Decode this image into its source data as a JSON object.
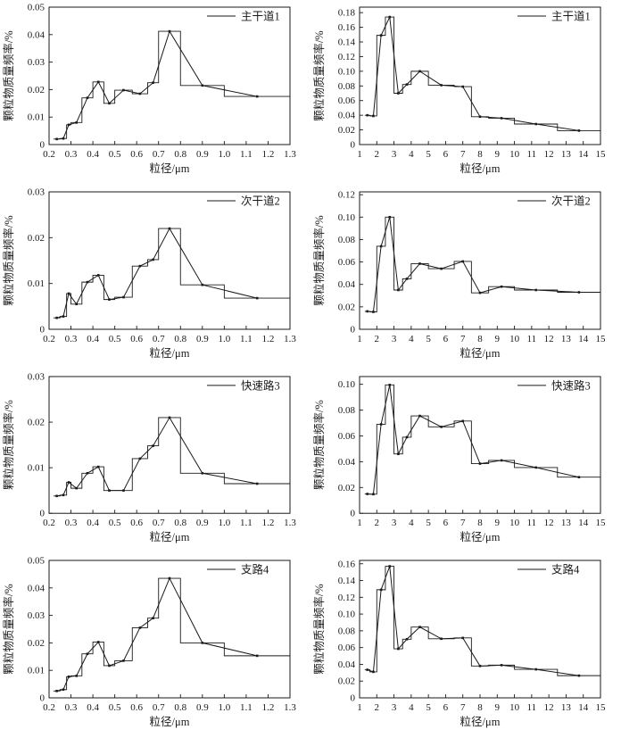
{
  "page": {
    "background": "#ffffff",
    "line_color": "#1a1a1a",
    "description": "Eight-panel particle mass frequency distributions by road type (fine 0.2-1.3 um and coarse 1-15 um ranges)"
  },
  "axis_labels": {
    "x": "粒径/μm",
    "y": "颗粒物质量频率/%"
  },
  "chart_data": [
    {
      "panel": "row1-left",
      "type": "bar",
      "style": "step-histogram-with-line-markers",
      "legend": "主干道1",
      "xlabel": "粒径/μm",
      "ylabel": "颗粒物质量频率/%",
      "xlim": [
        0.2,
        1.3
      ],
      "ylim": [
        0,
        0.05
      ],
      "x_ticks": [
        "0.2",
        "0.3",
        "0.4",
        "0.5",
        "0.6",
        "0.7",
        "0.8",
        "0.9",
        "1.0",
        "1.1",
        "1.2",
        "1.3"
      ],
      "y_ticks": [
        "0",
        "0.01",
        "0.02",
        "0.03",
        "0.04",
        "0.05"
      ],
      "bin_edges": [
        0.22,
        0.25,
        0.28,
        0.3,
        0.35,
        0.4,
        0.45,
        0.5,
        0.58,
        0.65,
        0.7,
        0.8,
        1.0,
        1.3
      ],
      "x": [
        0.235,
        0.265,
        0.29,
        0.325,
        0.375,
        0.425,
        0.475,
        0.54,
        0.615,
        0.675,
        0.75,
        0.9,
        1.15
      ],
      "values": [
        0.002,
        0.0022,
        0.0072,
        0.008,
        0.017,
        0.0228,
        0.015,
        0.0198,
        0.0185,
        0.0225,
        0.0412,
        0.0215,
        0.0175
      ]
    },
    {
      "panel": "row1-right",
      "type": "bar",
      "style": "step-histogram-with-line-markers",
      "legend": "主干道1",
      "xlabel": "粒径/μm",
      "ylabel": "颗粒物质量频率/%",
      "xlim": [
        1,
        15
      ],
      "ylim": [
        0,
        0.1875
      ],
      "x_ticks": [
        "1",
        "2",
        "3",
        "4",
        "5",
        "6",
        "7",
        "8",
        "9",
        "10",
        "11",
        "12",
        "13",
        "14",
        "15"
      ],
      "y_ticks": [
        "0",
        "0.02",
        "0.04",
        "0.06",
        "0.08",
        "0.10",
        "0.12",
        "0.14",
        "0.16",
        "0.18"
      ],
      "bin_edges": [
        1.3,
        1.6,
        2.0,
        2.5,
        3.0,
        3.5,
        4.0,
        5.0,
        6.5,
        7.5,
        8.5,
        10.0,
        12.5,
        15.0
      ],
      "x": [
        1.45,
        1.8,
        2.25,
        2.75,
        3.25,
        3.75,
        4.5,
        5.75,
        7.0,
        8.0,
        9.25,
        11.25,
        13.75
      ],
      "values": [
        0.04,
        0.039,
        0.149,
        0.174,
        0.07,
        0.082,
        0.1,
        0.081,
        0.079,
        0.038,
        0.036,
        0.028,
        0.019
      ]
    },
    {
      "panel": "row2-left",
      "type": "bar",
      "style": "step-histogram-with-line-markers",
      "legend": "次干道2",
      "xlabel": "粒径/μm",
      "ylabel": "颗粒物质量频率/%",
      "xlim": [
        0.2,
        1.3
      ],
      "ylim": [
        0,
        0.03
      ],
      "x_ticks": [
        "0.2",
        "0.3",
        "0.4",
        "0.5",
        "0.6",
        "0.7",
        "0.8",
        "0.9",
        "1.0",
        "1.1",
        "1.2",
        "1.3"
      ],
      "y_ticks": [
        "0",
        "0.01",
        "0.02",
        "0.03"
      ],
      "bin_edges": [
        0.22,
        0.25,
        0.28,
        0.3,
        0.35,
        0.4,
        0.45,
        0.5,
        0.58,
        0.65,
        0.7,
        0.8,
        1.0,
        1.3
      ],
      "x": [
        0.235,
        0.265,
        0.29,
        0.325,
        0.375,
        0.425,
        0.475,
        0.54,
        0.615,
        0.675,
        0.75,
        0.9,
        1.15
      ],
      "values": [
        0.0025,
        0.0028,
        0.0078,
        0.0055,
        0.0103,
        0.0118,
        0.0065,
        0.007,
        0.0138,
        0.0152,
        0.022,
        0.0097,
        0.0068
      ]
    },
    {
      "panel": "row2-right",
      "type": "bar",
      "style": "step-histogram-with-line-markers",
      "legend": "次干道2",
      "xlabel": "粒径/μm",
      "ylabel": "颗粒物质量频率/%",
      "xlim": [
        1,
        15
      ],
      "ylim": [
        0,
        0.1225
      ],
      "x_ticks": [
        "1",
        "2",
        "3",
        "4",
        "5",
        "6",
        "7",
        "8",
        "9",
        "10",
        "11",
        "12",
        "13",
        "14",
        "15"
      ],
      "y_ticks": [
        "0",
        "0.02",
        "0.04",
        "0.06",
        "0.08",
        "0.10",
        "0.12"
      ],
      "bin_edges": [
        1.3,
        1.6,
        2.0,
        2.5,
        3.0,
        3.5,
        4.0,
        5.0,
        6.5,
        7.5,
        8.5,
        10.0,
        12.5,
        15.0
      ],
      "x": [
        1.45,
        1.8,
        2.25,
        2.75,
        3.25,
        3.75,
        4.5,
        5.75,
        7.0,
        8.0,
        9.25,
        11.25,
        13.75
      ],
      "values": [
        0.016,
        0.0155,
        0.074,
        0.1,
        0.035,
        0.045,
        0.0585,
        0.054,
        0.0605,
        0.0325,
        0.038,
        0.035,
        0.033
      ]
    },
    {
      "panel": "row3-left",
      "type": "bar",
      "style": "step-histogram-with-line-markers",
      "legend": "快速路3",
      "xlabel": "粒径/μm",
      "ylabel": "颗粒物质量频率/%",
      "xlim": [
        0.2,
        1.3
      ],
      "ylim": [
        0,
        0.03
      ],
      "x_ticks": [
        "0.2",
        "0.3",
        "0.4",
        "0.5",
        "0.6",
        "0.7",
        "0.8",
        "0.9",
        "1.0",
        "1.1",
        "1.2",
        "1.3"
      ],
      "y_ticks": [
        "0",
        "0.01",
        "0.02",
        "0.03"
      ],
      "bin_edges": [
        0.22,
        0.25,
        0.28,
        0.3,
        0.35,
        0.4,
        0.45,
        0.5,
        0.58,
        0.65,
        0.7,
        0.8,
        1.0,
        1.3
      ],
      "x": [
        0.235,
        0.265,
        0.29,
        0.325,
        0.375,
        0.425,
        0.475,
        0.54,
        0.615,
        0.675,
        0.75,
        0.9,
        1.15
      ],
      "values": [
        0.0038,
        0.004,
        0.0068,
        0.0055,
        0.0088,
        0.0102,
        0.005,
        0.005,
        0.012,
        0.0148,
        0.021,
        0.0088,
        0.0065
      ]
    },
    {
      "panel": "row3-right",
      "type": "bar",
      "style": "step-histogram-with-line-markers",
      "legend": "快速路3",
      "xlabel": "粒径/μm",
      "ylabel": "颗粒物质量频率/%",
      "xlim": [
        1,
        15
      ],
      "ylim": [
        0,
        0.106
      ],
      "x_ticks": [
        "1",
        "2",
        "3",
        "4",
        "5",
        "6",
        "7",
        "8",
        "9",
        "10",
        "11",
        "12",
        "13",
        "14",
        "15"
      ],
      "y_ticks": [
        "0",
        "0.02",
        "0.04",
        "0.06",
        "0.08",
        "0.10"
      ],
      "bin_edges": [
        1.3,
        1.6,
        2.0,
        2.5,
        3.0,
        3.5,
        4.0,
        5.0,
        6.5,
        7.5,
        8.5,
        10.0,
        12.5,
        15.0
      ],
      "x": [
        1.45,
        1.8,
        2.25,
        2.75,
        3.25,
        3.75,
        4.5,
        5.75,
        7.0,
        8.0,
        9.25,
        11.25,
        13.75
      ],
      "values": [
        0.015,
        0.0148,
        0.069,
        0.0995,
        0.046,
        0.059,
        0.0755,
        0.067,
        0.0715,
        0.0385,
        0.041,
        0.0355,
        0.028
      ]
    },
    {
      "panel": "row4-left",
      "type": "bar",
      "style": "step-histogram-with-line-markers",
      "legend": "支路4",
      "xlabel": "粒径/μm",
      "ylabel": "颗粒物质量频率/%",
      "xlim": [
        0.2,
        1.3
      ],
      "ylim": [
        0,
        0.05
      ],
      "x_ticks": [
        "0.2",
        "0.3",
        "0.4",
        "0.5",
        "0.6",
        "0.7",
        "0.8",
        "0.9",
        "1.0",
        "1.1",
        "1.2",
        "1.3"
      ],
      "y_ticks": [
        "0",
        "0.01",
        "0.02",
        "0.03",
        "0.04",
        "0.05"
      ],
      "bin_edges": [
        0.22,
        0.25,
        0.28,
        0.3,
        0.35,
        0.4,
        0.45,
        0.5,
        0.58,
        0.65,
        0.7,
        0.8,
        1.0,
        1.3
      ],
      "x": [
        0.235,
        0.265,
        0.29,
        0.325,
        0.375,
        0.425,
        0.475,
        0.54,
        0.615,
        0.675,
        0.75,
        0.9,
        1.15
      ],
      "values": [
        0.0025,
        0.003,
        0.0077,
        0.008,
        0.016,
        0.0203,
        0.0117,
        0.0135,
        0.0255,
        0.029,
        0.0435,
        0.02,
        0.0153
      ]
    },
    {
      "panel": "row4-right",
      "type": "bar",
      "style": "step-histogram-with-line-markers",
      "legend": "支路4",
      "xlabel": "粒径/μm",
      "ylabel": "颗粒物质量频率/%",
      "xlim": [
        1,
        15
      ],
      "ylim": [
        0,
        0.164
      ],
      "x_ticks": [
        "1",
        "2",
        "3",
        "4",
        "5",
        "6",
        "7",
        "8",
        "9",
        "10",
        "11",
        "12",
        "13",
        "14",
        "15"
      ],
      "y_ticks": [
        "0",
        "0.02",
        "0.04",
        "0.06",
        "0.08",
        "0.10",
        "0.12",
        "0.14",
        "0.16"
      ],
      "bin_edges": [
        1.3,
        1.6,
        2.0,
        2.5,
        3.0,
        3.5,
        4.0,
        5.0,
        6.5,
        7.5,
        8.5,
        10.0,
        12.5,
        15.0
      ],
      "x": [
        1.45,
        1.8,
        2.25,
        2.75,
        3.25,
        3.75,
        4.5,
        5.75,
        7.0,
        8.0,
        9.25,
        11.25,
        13.75
      ],
      "values": [
        0.0335,
        0.031,
        0.129,
        0.157,
        0.0585,
        0.07,
        0.0845,
        0.0705,
        0.0715,
        0.038,
        0.039,
        0.034,
        0.0265
      ]
    }
  ]
}
